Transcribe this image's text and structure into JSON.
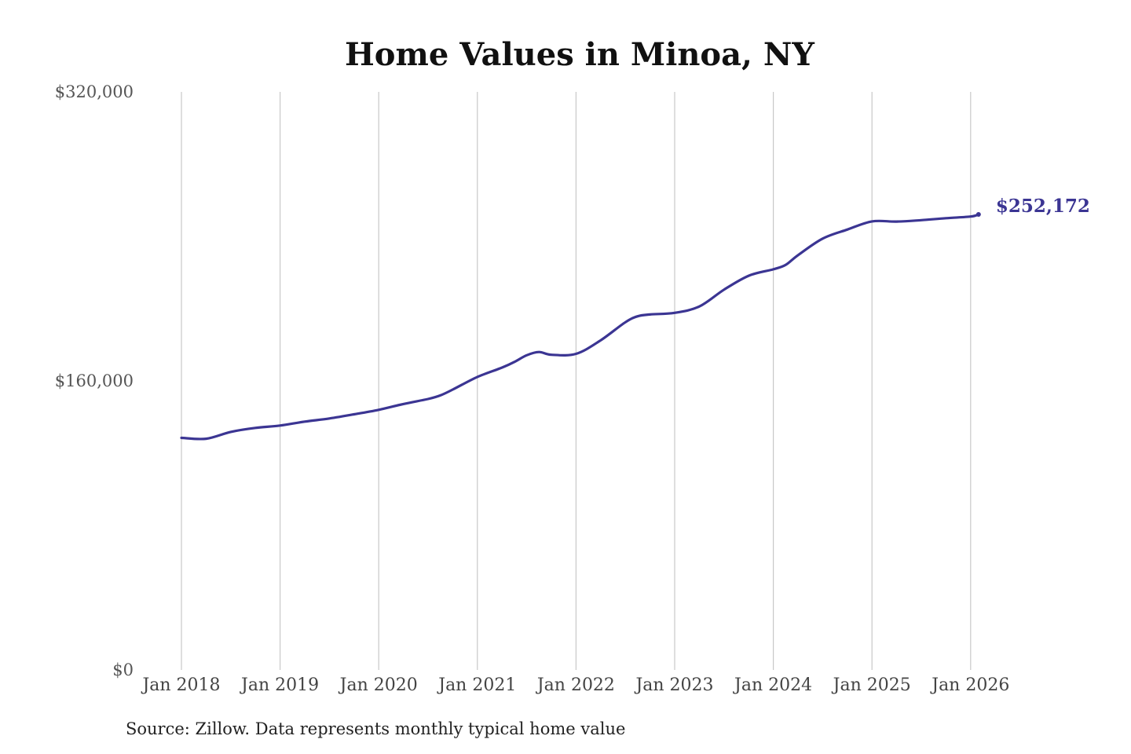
{
  "chart_data": {
    "type": "line",
    "title": "Home Values in Minoa, NY",
    "xlabel": "",
    "ylabel": "",
    "ylim": [
      0,
      320000
    ],
    "y_ticks": [
      {
        "value": 0,
        "label": "$0"
      },
      {
        "value": 160000,
        "label": "$160,000"
      },
      {
        "value": 320000,
        "label": "$320,000"
      }
    ],
    "x_ticks": [
      {
        "value": 2018.0,
        "label": "Jan 2018"
      },
      {
        "value": 2019.0,
        "label": "Jan 2019"
      },
      {
        "value": 2020.0,
        "label": "Jan 2020"
      },
      {
        "value": 2021.0,
        "label": "Jan 2021"
      },
      {
        "value": 2022.0,
        "label": "Jan 2022"
      },
      {
        "value": 2023.0,
        "label": "Jan 2023"
      },
      {
        "value": 2024.0,
        "label": "Jan 2024"
      },
      {
        "value": 2025.0,
        "label": "Jan 2025"
      },
      {
        "value": 2026.0,
        "label": "Jan 2026"
      }
    ],
    "xlim": [
      2018.0,
      2026.12
    ],
    "grid": "vertical",
    "series": [
      {
        "color": "#3b3593",
        "x": [
          2018.0,
          2018.25,
          2018.5,
          2018.75,
          2019.0,
          2019.25,
          2019.5,
          2019.75,
          2020.0,
          2020.25,
          2020.5,
          2020.625,
          2020.75,
          2021.0,
          2021.25,
          2021.375,
          2021.5,
          2021.625,
          2021.75,
          2022.0,
          2022.25,
          2022.5,
          2022.625,
          2022.75,
          2023.0,
          2023.25,
          2023.5,
          2023.75,
          2024.0,
          2024.125,
          2024.25,
          2024.5,
          2024.75,
          2025.0,
          2025.25,
          2025.5,
          2025.75,
          2026.0,
          2026.08
        ],
        "values": [
          128500,
          128000,
          131800,
          134000,
          135300,
          137500,
          139200,
          141500,
          144000,
          147200,
          150000,
          152000,
          155200,
          162200,
          167400,
          170500,
          174200,
          176000,
          174500,
          175000,
          182500,
          192500,
          195800,
          196800,
          197700,
          201200,
          210500,
          218200,
          221800,
          224200,
          229600,
          238800,
          243800,
          248300,
          248200,
          249000,
          250100,
          251000,
          252172
        ]
      }
    ],
    "end_label": "$252,172",
    "source": "Source: Zillow. Data represents monthly typical home value"
  }
}
